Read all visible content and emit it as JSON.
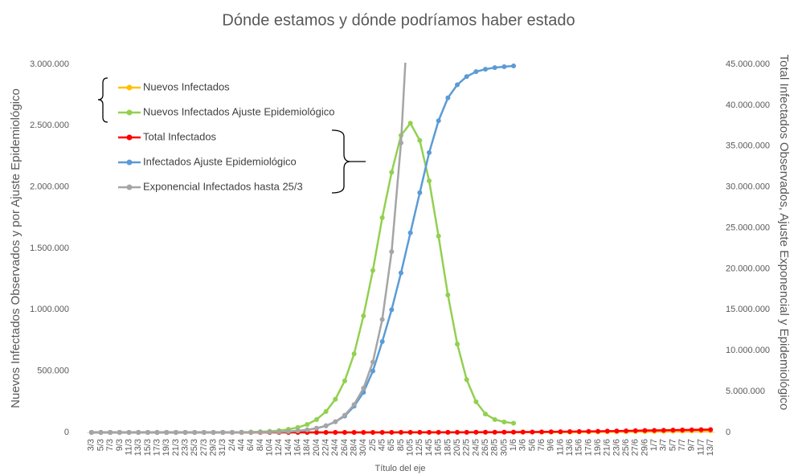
{
  "chart_data": {
    "type": "line",
    "title": "Dónde estamos y dónde podríamos haber estado",
    "x_label": "Título del eje",
    "y_label": "Nuevos Infectados Observados y por Ajuste Epidemiológico",
    "y2_label": "Total Infectados Observados, Ajuste Exponencial y Epidemiológico",
    "categories": [
      "3/3",
      "5/3",
      "7/3",
      "9/3",
      "11/3",
      "13/3",
      "15/3",
      "17/3",
      "19/3",
      "21/3",
      "23/3",
      "25/3",
      "27/3",
      "29/3",
      "31/3",
      "2/4",
      "4/4",
      "6/4",
      "8/4",
      "10/4",
      "12/4",
      "14/4",
      "16/4",
      "18/4",
      "20/4",
      "22/4",
      "24/4",
      "26/4",
      "28/4",
      "30/4",
      "2/5",
      "4/5",
      "6/5",
      "8/5",
      "10/5",
      "12/5",
      "14/5",
      "16/5",
      "18/5",
      "20/5",
      "22/5",
      "24/5",
      "26/5",
      "28/5",
      "30/5",
      "1/6",
      "3/6",
      "5/6",
      "7/6",
      "9/6",
      "11/6",
      "13/6",
      "15/6",
      "17/6",
      "19/6",
      "21/6",
      "23/6",
      "25/6",
      "27/6",
      "29/6",
      "1/7",
      "3/7",
      "5/7",
      "7/7",
      "9/7",
      "11/7",
      "13/7"
    ],
    "ylim": [
      0,
      3000000
    ],
    "yticks": [
      0,
      {
        "value": 500000,
        "label": "500.000"
      },
      {
        "value": 1000000,
        "label": "1.000.000"
      },
      {
        "value": 1500000,
        "label": "1.500.000"
      },
      {
        "value": 2000000,
        "label": "2.000.000"
      },
      {
        "value": 2500000,
        "label": "2.500.000"
      },
      {
        "value": 3000000,
        "label": "3.000.000"
      }
    ],
    "y2lim": [
      0,
      45000000
    ],
    "y2ticks": [
      0,
      {
        "value": 5000000,
        "label": "5.000.000"
      },
      {
        "value": 10000000,
        "label": "10.000.000"
      },
      {
        "value": 15000000,
        "label": "15.000.000"
      },
      {
        "value": 20000000,
        "label": "20.000.000"
      },
      {
        "value": 25000000,
        "label": "25.000.000"
      },
      {
        "value": 30000000,
        "label": "30.000.000"
      },
      {
        "value": 35000000,
        "label": "35.000.000"
      },
      {
        "value": 40000000,
        "label": "40.000.000"
      },
      {
        "value": 45000000,
        "label": "45.000.000"
      }
    ],
    "grid": false,
    "series": [
      {
        "name": "Nuevos Infectados",
        "color": "#ffc000",
        "values": [
          0,
          1,
          5,
          3,
          6,
          10,
          14,
          20,
          31,
          50,
          60,
          90,
          110,
          80,
          70,
          90,
          130,
          100,
          120,
          80,
          90,
          110,
          90,
          100,
          130,
          80,
          170,
          110,
          140,
          70,
          180,
          120,
          175,
          200,
          245,
          300,
          300,
          290,
          370,
          560,
          710,
          640,
          650,
          740,
          400,
          800,
          1000,
          1300,
          1600,
          2000,
          2400,
          2800,
          3300,
          3800,
          4400,
          5000,
          5600,
          6300,
          7000,
          7700,
          8400,
          9100,
          9800,
          10500,
          11200,
          11900,
          12600
        ]
      },
      {
        "name": "Nuevos Infectados Ajuste Epidemiológico",
        "color": "#92d050",
        "values": [
          0,
          0,
          0,
          0,
          0,
          5,
          10,
          20,
          30,
          50,
          80,
          140,
          240,
          400,
          700,
          1200,
          2000,
          3300,
          5500,
          9000,
          15000,
          25000,
          40000,
          65000,
          105000,
          170000,
          270000,
          420000,
          640000,
          950000,
          1320000,
          1750000,
          2120000,
          2420000,
          2520000,
          2380000,
          2050000,
          1600000,
          1120000,
          720000,
          430000,
          250000,
          150000,
          105000,
          85000,
          75000,
          null,
          null,
          null,
          null,
          null,
          null,
          null,
          null,
          null,
          null,
          null,
          null,
          null,
          null,
          null,
          null,
          null,
          null,
          null,
          null,
          null
        ]
      },
      {
        "name": "Total Infectados",
        "color": "#ff0000",
        "axis": "y2",
        "values": [
          1,
          2,
          12,
          19,
          31,
          56,
          97,
          158,
          266,
          387,
          589,
          820,
          966,
          1133,
          1265,
          1451,
          1715,
          1894,
          2142,
          2272,
          2443,
          2669,
          2839,
          3031,
          3288,
          3435,
          3780,
          4003,
          4285,
          4428,
          5000,
          5500,
          6100,
          6800,
          7600,
          8600,
          9800,
          11200,
          13000,
          15000,
          17500,
          20500,
          24000,
          28000,
          33000,
          39000,
          46000,
          54000,
          63000,
          73000,
          84000,
          96000,
          109000,
          123000,
          138000,
          154000,
          171000,
          189000,
          208000,
          228000,
          245000,
          262000,
          279000,
          296000,
          313000,
          330000,
          347000
        ]
      },
      {
        "name": "Infectados Ajuste Epidemiológico",
        "color": "#5b9bd5",
        "axis": "y2",
        "values": [
          0,
          0,
          0,
          0,
          5,
          15,
          30,
          60,
          100,
          180,
          300,
          500,
          900,
          1500,
          2500,
          4000,
          7000,
          12000,
          20000,
          35000,
          60000,
          100000,
          180000,
          300000,
          500000,
          800000,
          1300000,
          2000000,
          3200000,
          4900000,
          7500000,
          11100000,
          15000000,
          19500000,
          24400000,
          29300000,
          34200000,
          38100000,
          40900000,
          42500000,
          43500000,
          44100000,
          44400000,
          44600000,
          44700000,
          44800000,
          null,
          null,
          null,
          null,
          null,
          null,
          null,
          null,
          null,
          null,
          null,
          null,
          null,
          null,
          null,
          null,
          null,
          null,
          null,
          null,
          null
        ]
      },
      {
        "name": "Exponencial Infectados hasta 25/3",
        "color": "#a5a5a5",
        "axis": "y2",
        "values": [
          6,
          10,
          16,
          25,
          40,
          65,
          100,
          170,
          270,
          440,
          700,
          1100,
          1800,
          2900,
          4600,
          7400,
          12000,
          19000,
          30000,
          49000,
          78000,
          125000,
          200000,
          320000,
          510000,
          820000,
          1300000,
          2100000,
          3400000,
          5400000,
          8600000,
          13800000,
          22100000,
          35400000,
          56600000,
          null,
          null,
          null,
          null,
          null,
          null,
          null,
          null,
          null,
          null,
          null,
          null,
          null,
          null,
          null,
          null,
          null,
          null,
          null,
          null,
          null,
          null,
          null,
          null,
          null,
          null,
          null,
          null,
          null,
          null,
          null,
          null
        ]
      }
    ]
  }
}
